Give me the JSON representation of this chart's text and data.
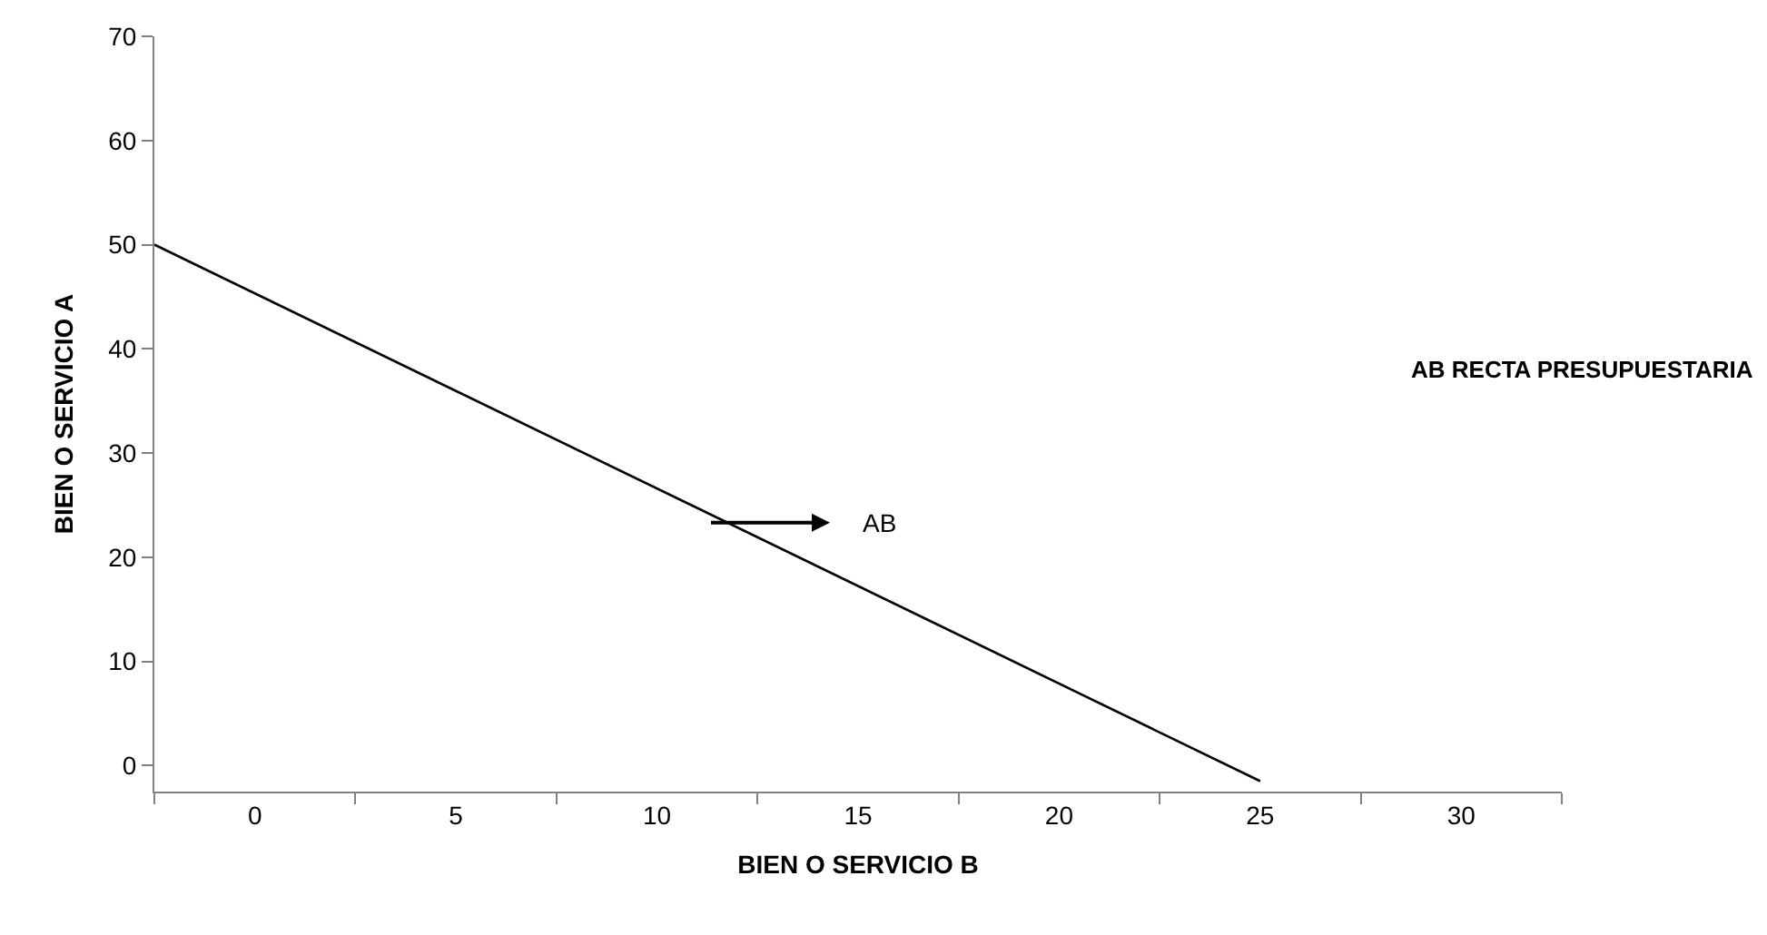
{
  "chart_data": {
    "type": "line",
    "xlabel": "BIEN O SERVICIO B",
    "ylabel": "BIEN O SERVICIO A",
    "x": [
      -2.5,
      25
    ],
    "series": [
      {
        "color": "#000000",
        "values": [
          50,
          -1.5
        ]
      }
    ],
    "xlim": [
      -2.5,
      32.5
    ],
    "xticks": [
      {
        "value": -2.5,
        "label": null
      },
      0,
      {
        "value": 2.5,
        "label": null
      },
      5,
      {
        "value": 7.5,
        "label": null
      },
      10,
      {
        "value": 12.5,
        "label": null
      },
      15,
      {
        "value": 17.5,
        "label": null
      },
      20,
      {
        "value": 22.5,
        "label": null
      },
      25,
      {
        "value": 27.5,
        "label": null
      },
      30,
      {
        "value": 32.5,
        "label": null
      }
    ],
    "ylim": [
      -2.5,
      70
    ],
    "yticks": [
      0,
      10,
      20,
      30,
      40,
      50,
      60,
      70
    ],
    "annotations": [
      "AB",
      "AB RECTA PRESUPUESTARIA"
    ],
    "legend": false,
    "marker": "none",
    "line_style": "solid"
  }
}
